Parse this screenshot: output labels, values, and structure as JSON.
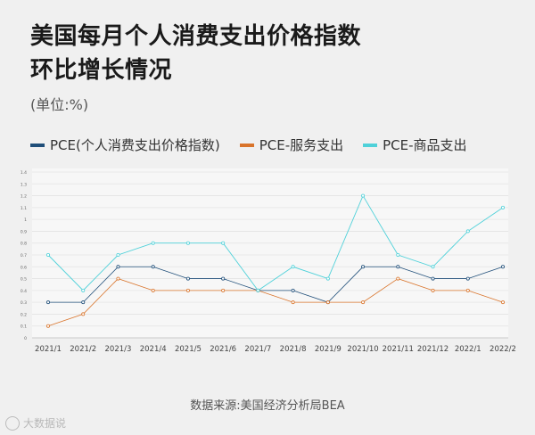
{
  "title_line1": "美国每月个人消费支出价格指数",
  "title_line2": "环比增长情况",
  "unit": "(单位:%)",
  "source": "数据来源:美国经济分析局BEA",
  "watermark": "大数据说",
  "colors": {
    "pce": "#1f4e79",
    "services": "#d9742b",
    "goods": "#4fd1d9"
  },
  "chart_data": {
    "type": "line",
    "title": "美国每月个人消费支出价格指数环比增长情况",
    "ylabel": "(单位:%)",
    "ylim": [
      0,
      1.4
    ],
    "yticks": [
      "0",
      "0.1",
      "0.2",
      "0.3",
      "0.4",
      "0.5",
      "0.6",
      "0.7",
      "0.8",
      "0.9",
      "1",
      "1.1",
      "1.2",
      "1.3",
      "1.4"
    ],
    "categories": [
      "2021/1",
      "2021/2",
      "2021/3",
      "2021/4",
      "2021/5",
      "2021/6",
      "2021/7",
      "2021/8",
      "2021/9",
      "2021/10",
      "2021/11",
      "2021/12",
      "2022/1",
      "2022/2"
    ],
    "legend_position": "top-left",
    "grid": true,
    "series": [
      {
        "name": "PCE(个人消费支出价格指数)",
        "color_key": "pce",
        "values": [
          0.3,
          0.3,
          0.6,
          0.6,
          0.5,
          0.5,
          0.4,
          0.4,
          0.3,
          0.6,
          0.6,
          0.5,
          0.5,
          0.6
        ]
      },
      {
        "name": "PCE-服务支出",
        "color_key": "services",
        "values": [
          0.1,
          0.2,
          0.5,
          0.4,
          0.4,
          0.4,
          0.4,
          0.3,
          0.3,
          0.3,
          0.5,
          0.4,
          0.4,
          0.3
        ]
      },
      {
        "name": "PCE-商品支出",
        "color_key": "goods",
        "values": [
          0.7,
          0.4,
          0.7,
          0.8,
          0.8,
          0.8,
          0.4,
          0.6,
          0.5,
          1.2,
          0.7,
          0.6,
          0.9,
          1.1
        ]
      }
    ]
  }
}
